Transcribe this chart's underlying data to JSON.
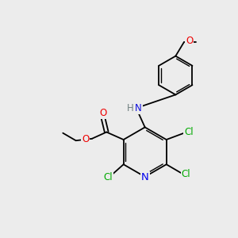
{
  "background_color": "#ececec",
  "atom_colors": {
    "N": "#0000ee",
    "O": "#ee0000",
    "Cl": "#00aa00",
    "NH_H": "#708080",
    "NH_N": "#1010dd"
  },
  "font_size": 8.5,
  "bond_lw": 1.3,
  "ring_r": 0.82,
  "phenyl_r": 0.78
}
